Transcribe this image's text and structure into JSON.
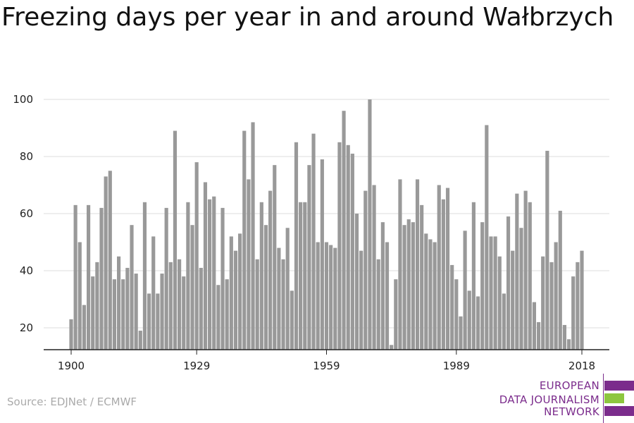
{
  "source": "Source: EDJNet / ECMWF",
  "logo": {
    "line1": "EUROPEAN",
    "line2": "DATA JOURNALISM",
    "line3": "NETWORK",
    "colors": {
      "purple": "#7b2c8c",
      "green": "#8dc63f"
    }
  },
  "chart_data": {
    "type": "bar",
    "title": "Freezing days per year in and around Wałbrzych",
    "xlabel": "",
    "ylabel": "",
    "x_ticks": [
      "1900",
      "1929",
      "1959",
      "1989",
      "2018"
    ],
    "y_ticks": [
      20,
      40,
      60,
      80,
      100
    ],
    "ylim": [
      12,
      102
    ],
    "grid": "horizontal",
    "bar_color": "#999999",
    "categories": [
      1900,
      1901,
      1902,
      1903,
      1904,
      1905,
      1906,
      1907,
      1908,
      1909,
      1910,
      1911,
      1912,
      1913,
      1914,
      1915,
      1916,
      1917,
      1918,
      1919,
      1920,
      1921,
      1922,
      1923,
      1924,
      1925,
      1926,
      1927,
      1928,
      1929,
      1930,
      1931,
      1932,
      1933,
      1934,
      1935,
      1936,
      1937,
      1938,
      1939,
      1940,
      1941,
      1942,
      1943,
      1944,
      1945,
      1946,
      1947,
      1948,
      1949,
      1950,
      1951,
      1952,
      1953,
      1954,
      1955,
      1956,
      1957,
      1958,
      1959,
      1960,
      1961,
      1962,
      1963,
      1964,
      1965,
      1966,
      1967,
      1968,
      1969,
      1970,
      1971,
      1972,
      1973,
      1974,
      1975,
      1976,
      1977,
      1978,
      1979,
      1980,
      1981,
      1982,
      1983,
      1984,
      1985,
      1986,
      1987,
      1988,
      1989,
      1990,
      1991,
      1992,
      1993,
      1994,
      1995,
      1996,
      1997,
      1998,
      1999,
      2000,
      2001,
      2002,
      2003,
      2004,
      2005,
      2006,
      2007,
      2008,
      2009,
      2010,
      2011,
      2012,
      2013,
      2014,
      2015,
      2016,
      2017,
      2018
    ],
    "values": [
      23,
      63,
      50,
      28,
      63,
      38,
      43,
      62,
      73,
      75,
      37,
      45,
      37,
      41,
      56,
      39,
      19,
      64,
      32,
      52,
      32,
      39,
      62,
      43,
      89,
      44,
      38,
      64,
      56,
      78,
      41,
      71,
      65,
      66,
      35,
      62,
      37,
      52,
      47,
      53,
      89,
      72,
      92,
      44,
      64,
      56,
      68,
      77,
      48,
      44,
      55,
      33,
      85,
      64,
      64,
      77,
      88,
      50,
      79,
      50,
      49,
      48,
      85,
      96,
      84,
      81,
      60,
      47,
      68,
      100,
      70,
      44,
      57,
      50,
      14,
      37,
      72,
      56,
      58,
      57,
      72,
      63,
      53,
      51,
      50,
      70,
      65,
      69,
      42,
      37,
      24,
      54,
      33,
      64,
      31,
      57,
      91,
      52,
      52,
      45,
      32,
      59,
      47,
      67,
      55,
      68,
      64,
      29,
      22,
      45,
      82,
      43,
      50,
      61,
      21,
      16,
      38,
      43,
      47
    ]
  }
}
